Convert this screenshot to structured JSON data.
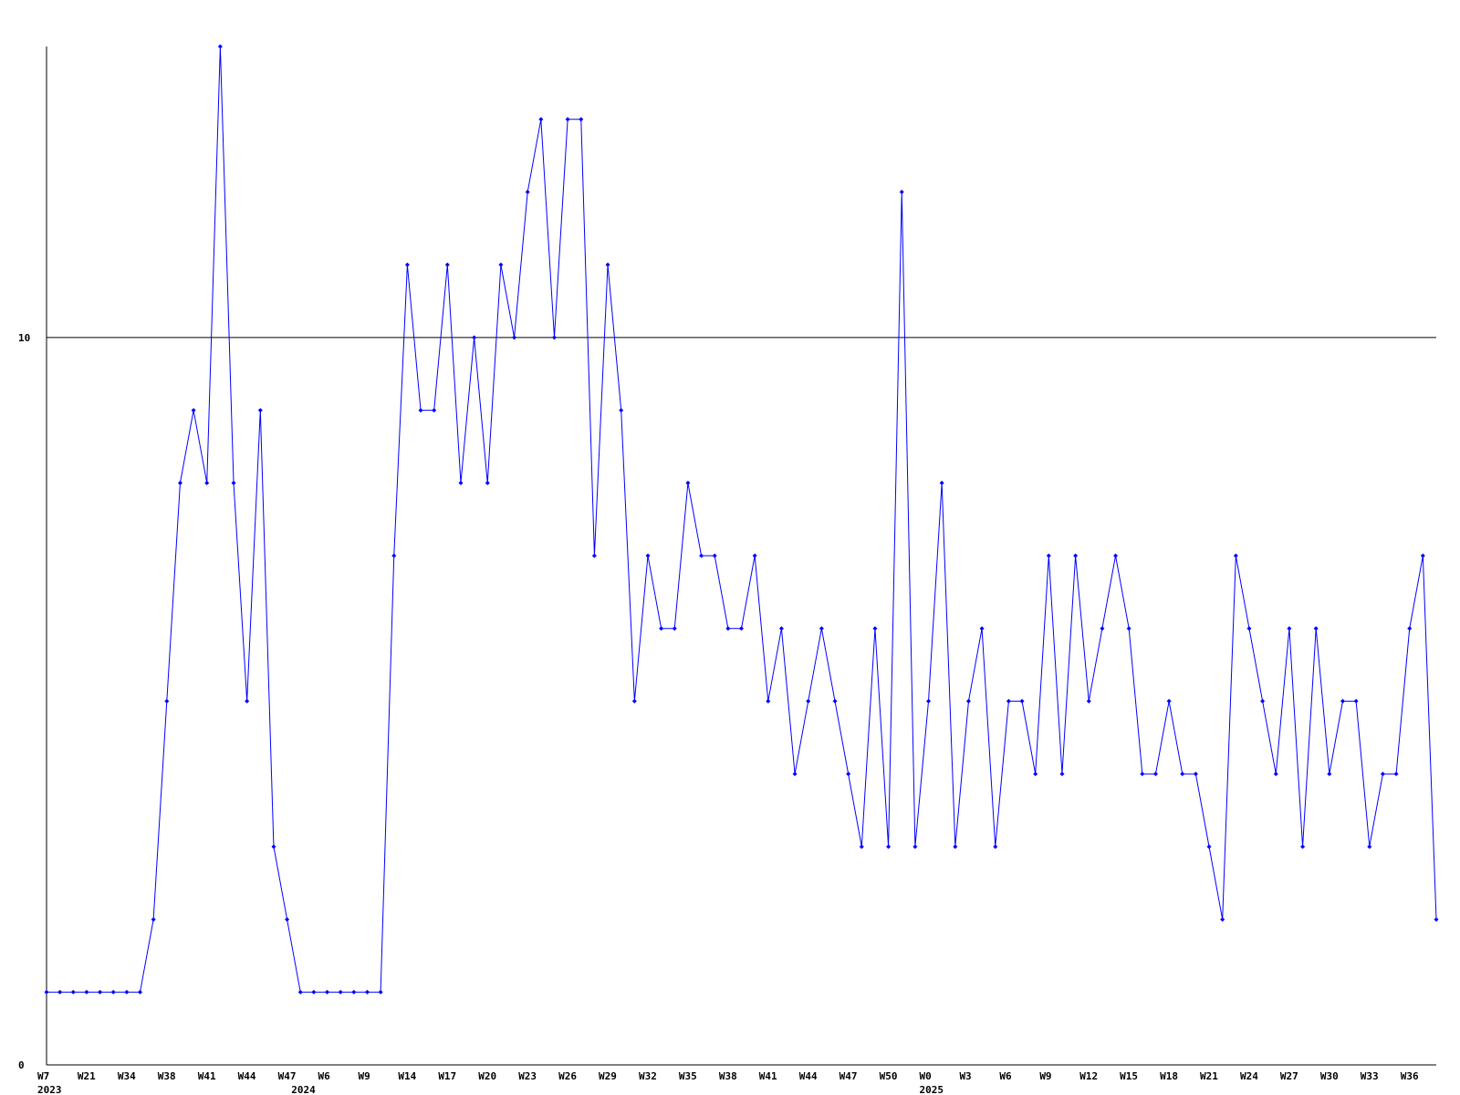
{
  "chart_data": {
    "type": "line",
    "categories": [
      "W7",
      null,
      null,
      "W21",
      null,
      null,
      "W34",
      null,
      null,
      "W38",
      null,
      null,
      "W41",
      null,
      null,
      "W44",
      null,
      null,
      "W47",
      null,
      null,
      "W6",
      null,
      null,
      "W9",
      null,
      null,
      "W14",
      null,
      null,
      "W17",
      null,
      null,
      "W20",
      null,
      null,
      "W23",
      null,
      null,
      "W26",
      null,
      null,
      "W29",
      null,
      null,
      "W32",
      null,
      null,
      "W35",
      null,
      null,
      "W38",
      null,
      null,
      "W41",
      null,
      null,
      "W44",
      null,
      null,
      "W47",
      null,
      null,
      "W50",
      null,
      null,
      "W0",
      null,
      null,
      "W3",
      null,
      null,
      "W6",
      null,
      null,
      "W9",
      null,
      null,
      "W12",
      null,
      null,
      "W15",
      null,
      null,
      "W18",
      null,
      null,
      "W21",
      null,
      null,
      "W24",
      null,
      null,
      "W27",
      null,
      null,
      "W30",
      null,
      null,
      "W33",
      null,
      null,
      "W36",
      null,
      null
    ],
    "category_years": [
      "2023",
      null,
      null,
      null,
      null,
      null,
      null,
      null,
      null,
      null,
      null,
      null,
      null,
      null,
      null,
      null,
      null,
      null,
      null,
      "2024",
      null,
      null,
      null,
      null,
      null,
      null,
      null,
      null,
      null,
      null,
      null,
      null,
      null,
      null,
      null,
      null,
      null,
      null,
      null,
      null,
      null,
      null,
      null,
      null,
      null,
      null,
      null,
      null,
      null,
      null,
      null,
      null,
      null,
      null,
      null,
      null,
      null,
      null,
      null,
      null,
      null,
      null,
      null,
      null,
      null,
      null,
      "2025",
      null,
      null,
      null,
      null,
      null,
      null,
      null,
      null,
      null,
      null,
      null,
      null,
      null,
      null,
      null,
      null,
      null,
      null,
      null,
      null,
      null,
      null,
      null,
      null,
      null,
      null,
      null,
      null,
      null,
      null,
      null,
      null,
      null,
      null,
      null,
      null,
      null,
      null
    ],
    "series": [
      {
        "color": "#0000ff",
        "values": [
          1,
          1,
          1,
          1,
          1,
          1,
          1,
          1,
          2,
          5,
          8,
          9,
          8,
          14,
          8,
          5,
          9,
          3,
          2,
          1,
          1,
          1,
          1,
          1,
          1,
          1,
          7,
          11,
          9,
          9,
          11,
          8,
          10,
          8,
          11,
          10,
          12,
          13,
          10,
          13,
          13,
          7,
          11,
          9,
          5,
          7,
          6,
          6,
          8,
          7,
          7,
          6,
          6,
          7,
          5,
          6,
          4,
          5,
          6,
          5,
          4,
          3,
          6,
          3,
          12,
          3,
          5,
          8,
          3,
          5,
          6,
          3,
          5,
          5,
          4,
          7,
          4,
          7,
          5,
          6,
          7,
          6,
          4,
          4,
          5,
          4,
          4,
          3,
          2,
          7,
          6,
          5,
          4,
          6,
          3,
          6,
          4,
          5,
          5,
          3,
          4,
          4,
          6,
          7,
          2
        ]
      }
    ],
    "ylim": [
      0,
      14
    ],
    "yticks": [
      0,
      10
    ],
    "grid": true
  }
}
